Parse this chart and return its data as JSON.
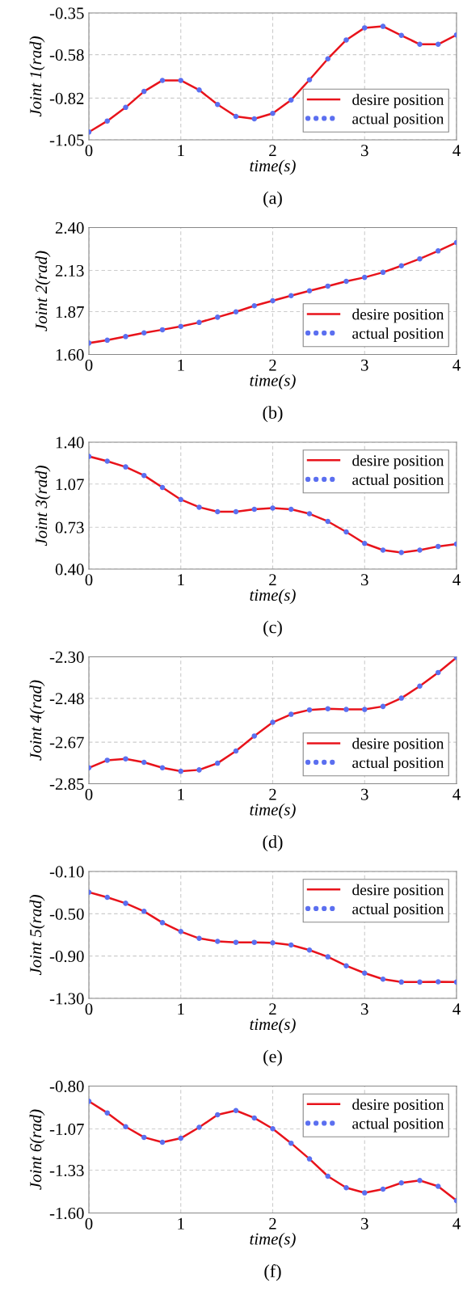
{
  "chart_data": [
    {
      "type": "line",
      "xlabel": "time(s)",
      "ylabel": "Joint 1(rad)",
      "annotations": [
        "(a)"
      ],
      "xlim": [
        0,
        4
      ],
      "xticks": [
        0,
        1,
        2,
        3,
        4
      ],
      "ylim": [
        -1.05,
        -0.35
      ],
      "yticks": [
        {
          "value": -1.05,
          "label": "-1.05"
        },
        {
          "value": -0.82,
          "label": "-0.82"
        },
        {
          "value": -0.58,
          "label": "-0.58"
        },
        {
          "value": -0.35,
          "label": "-0.35"
        }
      ],
      "grid": true,
      "legend": "lower right",
      "x": [
        0,
        0.2,
        0.4,
        0.6,
        0.8,
        1.0,
        1.2,
        1.4,
        1.6,
        1.8,
        2.0,
        2.2,
        2.4,
        2.6,
        2.8,
        3.0,
        3.2,
        3.4,
        3.6,
        3.8,
        4.0
      ],
      "series": [
        {
          "name": "desire position",
          "type": "line",
          "color": "#e8131b",
          "line_style": "solid",
          "values": [
            -1.007,
            -0.946,
            -0.871,
            -0.783,
            -0.722,
            -0.722,
            -0.775,
            -0.855,
            -0.921,
            -0.934,
            -0.904,
            -0.83,
            -0.719,
            -0.603,
            -0.499,
            -0.432,
            -0.424,
            -0.474,
            -0.523,
            -0.523,
            -0.471
          ]
        },
        {
          "name": "actual position",
          "type": "scatter",
          "marker": "circle",
          "color": "#5b6ff0",
          "values": [
            -1.007,
            -0.946,
            -0.871,
            -0.783,
            -0.722,
            -0.722,
            -0.775,
            -0.855,
            -0.921,
            -0.934,
            -0.904,
            -0.83,
            -0.719,
            -0.603,
            -0.499,
            -0.432,
            -0.424,
            -0.474,
            -0.523,
            -0.523,
            -0.471
          ]
        }
      ]
    },
    {
      "type": "line",
      "xlabel": "time(s)",
      "ylabel": "Joint 2(rad)",
      "annotations": [
        "(b)"
      ],
      "xlim": [
        0,
        4
      ],
      "xticks": [
        0,
        1,
        2,
        3,
        4
      ],
      "ylim": [
        1.6,
        2.4
      ],
      "yticks": [
        {
          "value": 1.6,
          "label": "1.60"
        },
        {
          "value": 1.87,
          "label": "1.87"
        },
        {
          "value": 2.13,
          "label": "2.13"
        },
        {
          "value": 2.4,
          "label": "2.40"
        }
      ],
      "grid": true,
      "legend": "lower right",
      "x": [
        0,
        0.2,
        0.4,
        0.6,
        0.8,
        1.0,
        1.2,
        1.4,
        1.6,
        1.8,
        2.0,
        2.2,
        2.4,
        2.6,
        2.8,
        3.0,
        3.2,
        3.4,
        3.6,
        3.8,
        4.0
      ],
      "series": [
        {
          "name": "desire position",
          "type": "line",
          "color": "#e8131b",
          "line_style": "solid",
          "values": [
            1.672,
            1.69,
            1.713,
            1.736,
            1.756,
            1.777,
            1.802,
            1.835,
            1.869,
            1.907,
            1.939,
            1.971,
            2.001,
            2.031,
            2.061,
            2.086,
            2.118,
            2.159,
            2.203,
            2.253,
            2.306
          ]
        },
        {
          "name": "actual position",
          "type": "scatter",
          "marker": "circle",
          "color": "#5b6ff0",
          "values": [
            1.672,
            1.69,
            1.713,
            1.736,
            1.756,
            1.777,
            1.802,
            1.835,
            1.869,
            1.907,
            1.939,
            1.971,
            2.001,
            2.031,
            2.061,
            2.086,
            2.118,
            2.159,
            2.203,
            2.253,
            2.306
          ]
        }
      ]
    },
    {
      "type": "line",
      "xlabel": "time(s)",
      "ylabel": "Joint 3(rad)",
      "annotations": [
        "(c)"
      ],
      "xlim": [
        0,
        4
      ],
      "xticks": [
        0,
        1,
        2,
        3,
        4
      ],
      "ylim": [
        0.4,
        1.4
      ],
      "yticks": [
        {
          "value": 0.4,
          "label": "0.40"
        },
        {
          "value": 0.73,
          "label": "0.73"
        },
        {
          "value": 1.07,
          "label": "1.07"
        },
        {
          "value": 1.4,
          "label": "1.40"
        }
      ],
      "grid": true,
      "legend": "upper right",
      "x": [
        0,
        0.2,
        0.4,
        0.6,
        0.8,
        1.0,
        1.2,
        1.4,
        1.6,
        1.8,
        2.0,
        2.2,
        2.4,
        2.6,
        2.8,
        3.0,
        3.2,
        3.4,
        3.6,
        3.8,
        4.0
      ],
      "series": [
        {
          "name": "desire position",
          "type": "line",
          "color": "#e8131b",
          "line_style": "solid",
          "values": [
            1.288,
            1.25,
            1.205,
            1.138,
            1.043,
            0.948,
            0.888,
            0.852,
            0.852,
            0.871,
            0.881,
            0.871,
            0.836,
            0.776,
            0.693,
            0.602,
            0.55,
            0.531,
            0.55,
            0.579,
            0.598
          ]
        },
        {
          "name": "actual position",
          "type": "scatter",
          "marker": "circle",
          "color": "#5b6ff0",
          "values": [
            1.288,
            1.25,
            1.205,
            1.138,
            1.043,
            0.948,
            0.888,
            0.852,
            0.852,
            0.871,
            0.881,
            0.871,
            0.836,
            0.776,
            0.693,
            0.602,
            0.55,
            0.531,
            0.55,
            0.579,
            0.598
          ]
        }
      ]
    },
    {
      "type": "line",
      "xlabel": "time(s)",
      "ylabel": "Joint 4(rad)",
      "annotations": [
        "(d)"
      ],
      "xlim": [
        0,
        4
      ],
      "xticks": [
        0,
        1,
        2,
        3,
        4
      ],
      "ylim": [
        -2.85,
        -2.3
      ],
      "yticks": [
        {
          "value": -2.85,
          "label": "-2.85"
        },
        {
          "value": -2.67,
          "label": "-2.67"
        },
        {
          "value": -2.48,
          "label": "-2.48"
        },
        {
          "value": -2.3,
          "label": "-2.30"
        }
      ],
      "grid": true,
      "legend": "lower right",
      "x": [
        0,
        0.2,
        0.4,
        0.6,
        0.8,
        1.0,
        1.2,
        1.4,
        1.6,
        1.8,
        2.0,
        2.2,
        2.4,
        2.6,
        2.8,
        3.0,
        3.2,
        3.4,
        3.6,
        3.8,
        4.0
      ],
      "series": [
        {
          "name": "desire position",
          "type": "line",
          "color": "#e8131b",
          "line_style": "solid",
          "values": [
            -2.781,
            -2.748,
            -2.742,
            -2.757,
            -2.781,
            -2.796,
            -2.79,
            -2.761,
            -2.708,
            -2.643,
            -2.584,
            -2.549,
            -2.53,
            -2.525,
            -2.528,
            -2.528,
            -2.515,
            -2.479,
            -2.427,
            -2.368,
            -2.303
          ]
        },
        {
          "name": "actual position",
          "type": "scatter",
          "marker": "circle",
          "color": "#5b6ff0",
          "values": [
            -2.781,
            -2.748,
            -2.742,
            -2.757,
            -2.781,
            -2.796,
            -2.79,
            -2.761,
            -2.708,
            -2.643,
            -2.584,
            -2.549,
            -2.53,
            -2.525,
            -2.528,
            -2.528,
            -2.515,
            -2.479,
            -2.427,
            -2.368,
            -2.303
          ]
        }
      ]
    },
    {
      "type": "line",
      "xlabel": "time(s)",
      "ylabel": "Joint 5(rad)",
      "annotations": [
        "(e)"
      ],
      "xlim": [
        0,
        4
      ],
      "xticks": [
        0,
        1,
        2,
        3,
        4
      ],
      "ylim": [
        -1.3,
        -0.1
      ],
      "yticks": [
        {
          "value": -1.3,
          "label": "-1.30"
        },
        {
          "value": -0.9,
          "label": "-0.90"
        },
        {
          "value": -0.5,
          "label": "-0.50"
        },
        {
          "value": -0.1,
          "label": "-0.10"
        }
      ],
      "grid": true,
      "legend": "upper right",
      "x": [
        0,
        0.2,
        0.4,
        0.6,
        0.8,
        1.0,
        1.2,
        1.4,
        1.6,
        1.8,
        2.0,
        2.2,
        2.4,
        2.6,
        2.8,
        3.0,
        3.2,
        3.4,
        3.6,
        3.8,
        4.0
      ],
      "series": [
        {
          "name": "desire position",
          "type": "line",
          "color": "#e8131b",
          "line_style": "solid",
          "values": [
            -0.297,
            -0.345,
            -0.401,
            -0.477,
            -0.584,
            -0.668,
            -0.733,
            -0.761,
            -0.77,
            -0.77,
            -0.775,
            -0.795,
            -0.843,
            -0.907,
            -0.992,
            -1.061,
            -1.118,
            -1.146,
            -1.146,
            -1.143,
            -1.146
          ]
        },
        {
          "name": "actual position",
          "type": "scatter",
          "marker": "circle",
          "color": "#5b6ff0",
          "values": [
            -0.297,
            -0.345,
            -0.401,
            -0.477,
            -0.584,
            -0.668,
            -0.733,
            -0.761,
            -0.77,
            -0.77,
            -0.775,
            -0.795,
            -0.843,
            -0.907,
            -0.992,
            -1.061,
            -1.118,
            -1.146,
            -1.146,
            -1.143,
            -1.146
          ]
        }
      ]
    },
    {
      "type": "line",
      "xlabel": "time(s)",
      "ylabel": "Joint 6(rad)",
      "annotations": [
        "(f)"
      ],
      "xlim": [
        0,
        4
      ],
      "xticks": [
        0,
        1,
        2,
        3,
        4
      ],
      "ylim": [
        -1.6,
        -0.8
      ],
      "yticks": [
        {
          "value": -1.6,
          "label": "-1.60"
        },
        {
          "value": -1.33,
          "label": "-1.33"
        },
        {
          "value": -1.07,
          "label": "-1.07"
        },
        {
          "value": -0.8,
          "label": "-0.80"
        }
      ],
      "grid": true,
      "legend": "upper right",
      "x": [
        0,
        0.2,
        0.4,
        0.6,
        0.8,
        1.0,
        1.2,
        1.4,
        1.6,
        1.8,
        2.0,
        2.2,
        2.4,
        2.6,
        2.8,
        3.0,
        3.2,
        3.4,
        3.6,
        3.8,
        4.0
      ],
      "series": [
        {
          "name": "desire position",
          "type": "line",
          "color": "#e8131b",
          "line_style": "solid",
          "values": [
            -0.896,
            -0.969,
            -1.056,
            -1.123,
            -1.154,
            -1.129,
            -1.06,
            -0.981,
            -0.954,
            -1.001,
            -1.069,
            -1.16,
            -1.259,
            -1.368,
            -1.441,
            -1.473,
            -1.45,
            -1.41,
            -1.395,
            -1.432,
            -1.522
          ]
        },
        {
          "name": "actual position",
          "type": "scatter",
          "marker": "circle",
          "color": "#5b6ff0",
          "values": [
            -0.896,
            -0.969,
            -1.056,
            -1.123,
            -1.154,
            -1.129,
            -1.06,
            -0.981,
            -0.954,
            -1.001,
            -1.069,
            -1.16,
            -1.259,
            -1.368,
            -1.441,
            -1.473,
            -1.45,
            -1.41,
            -1.395,
            -1.432,
            -1.522
          ]
        }
      ]
    }
  ]
}
